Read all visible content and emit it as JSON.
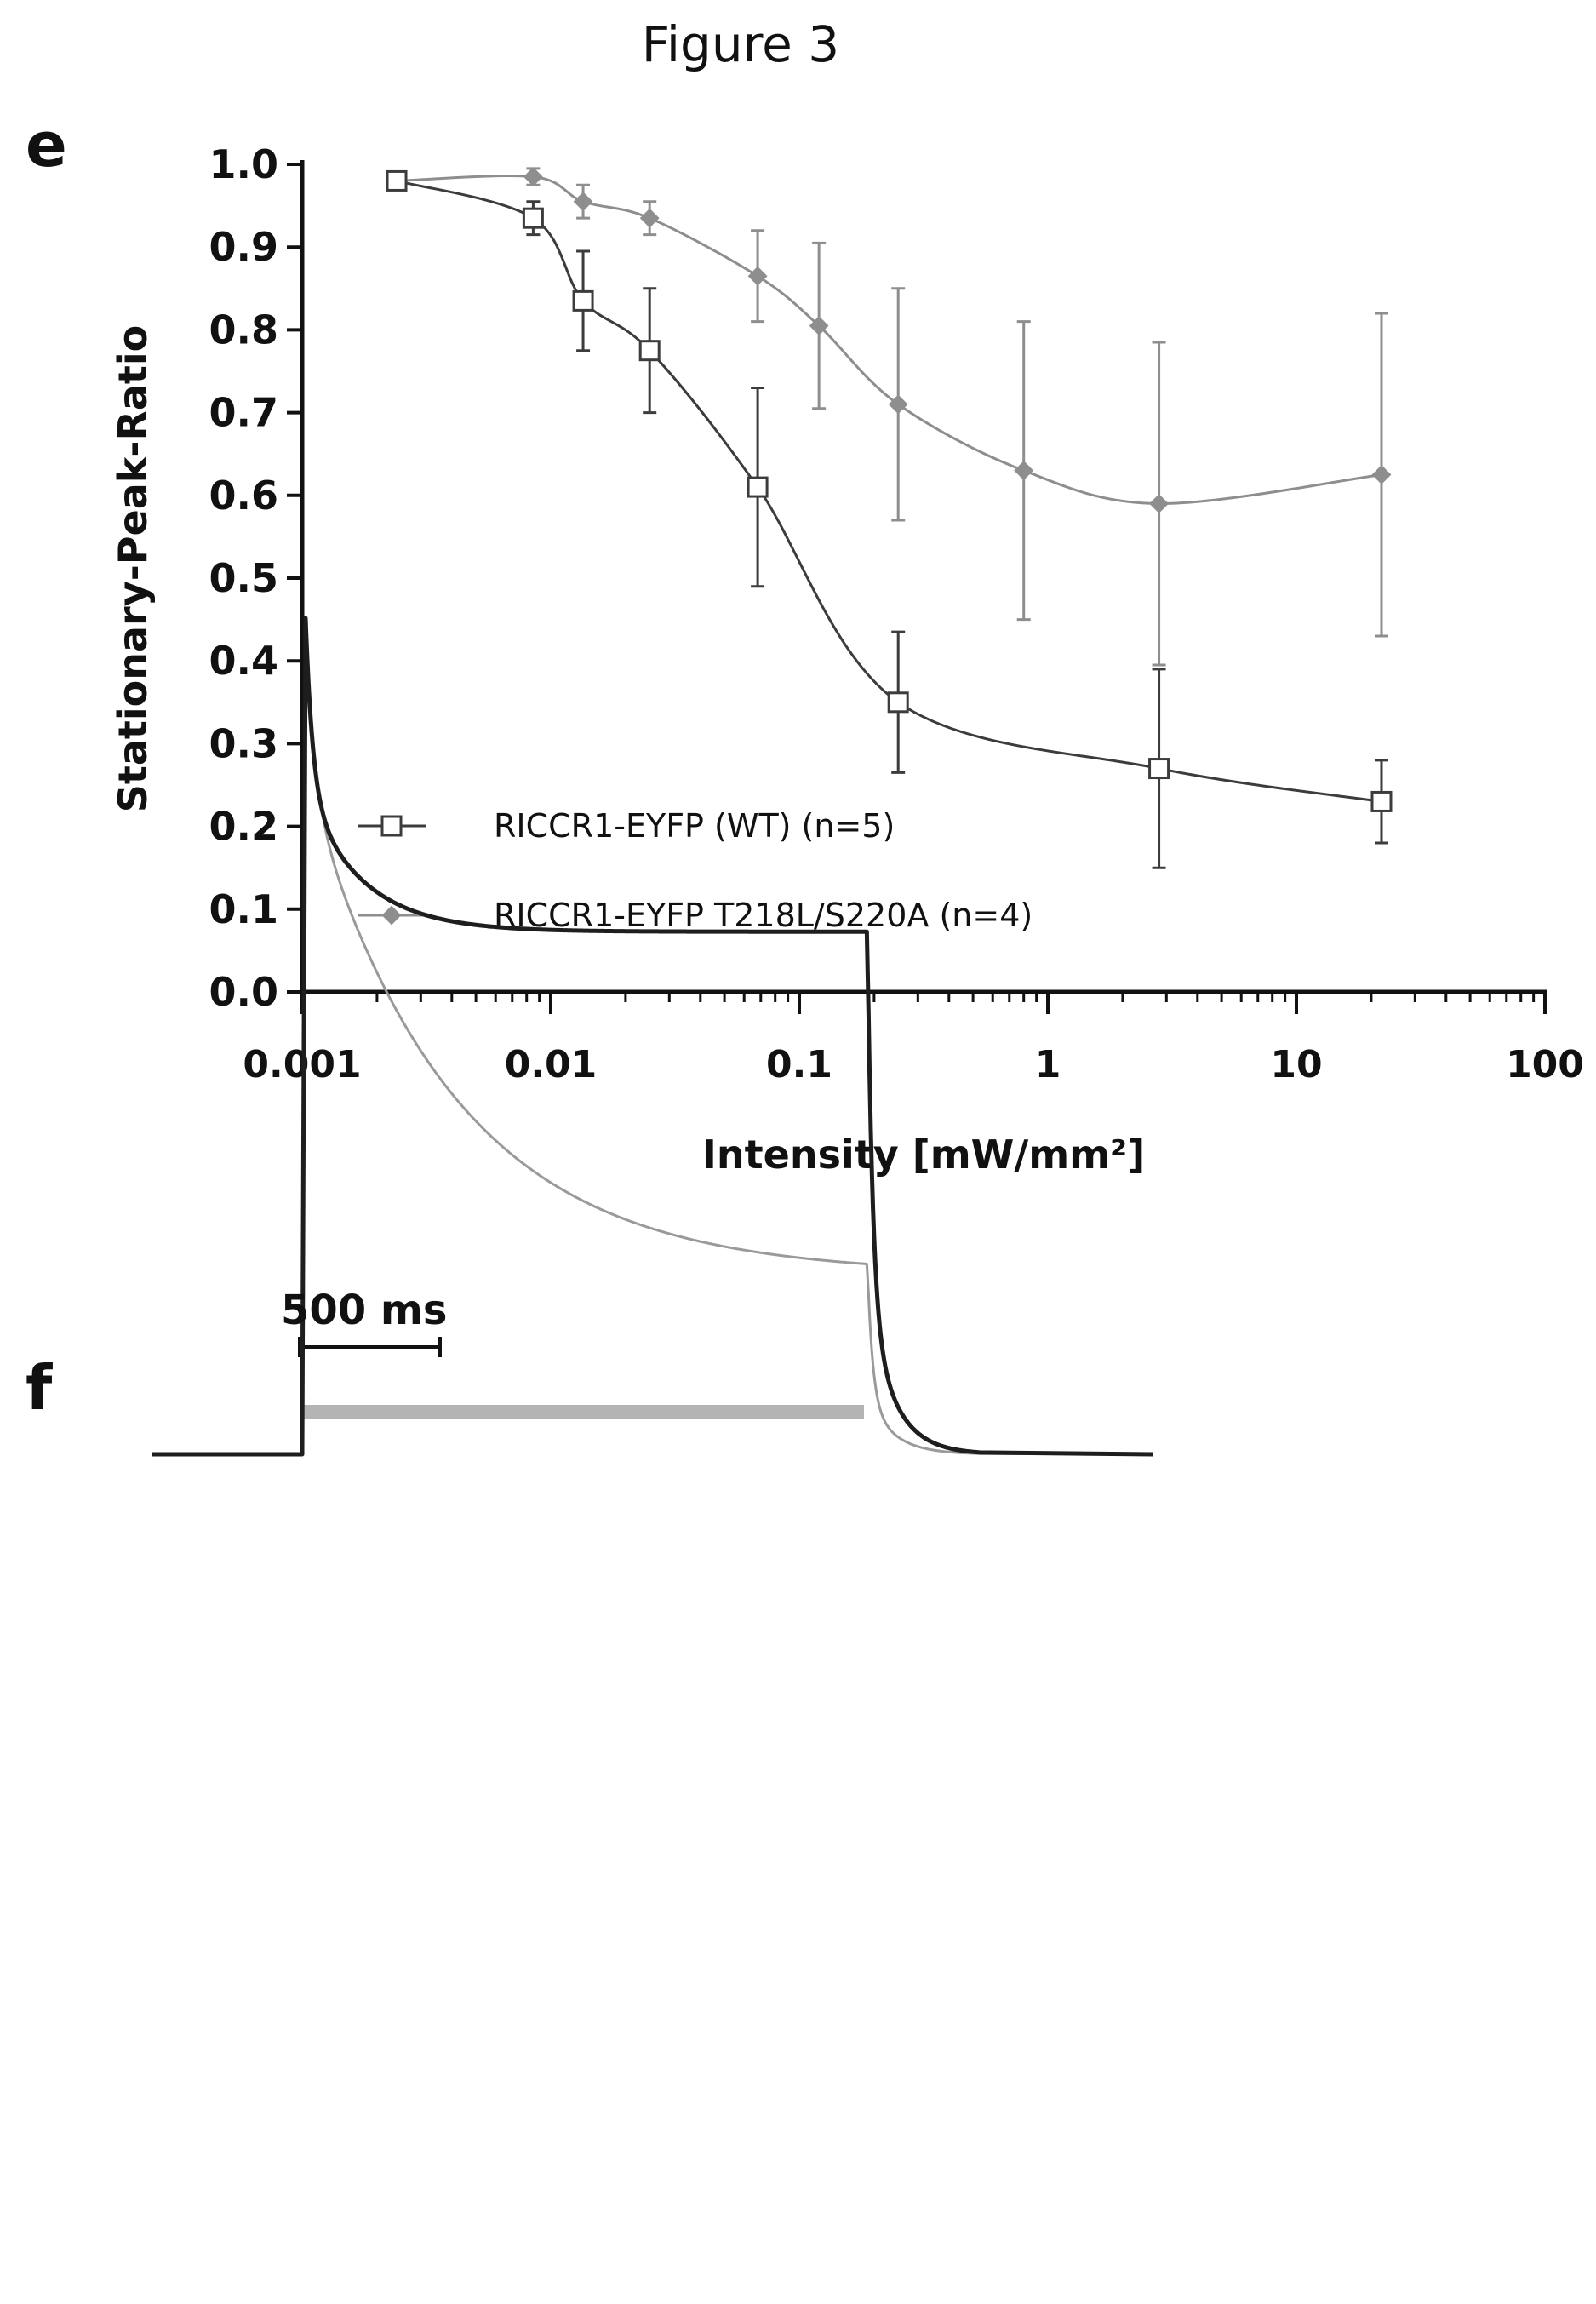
{
  "figure_title": "Figure 3",
  "panels": {
    "e": "e",
    "f": "f"
  },
  "chart_data": [
    {
      "panel": "e",
      "type": "line",
      "xlabel": "Intensity [mW/mm²]",
      "ylabel": "Stationary-Peak-Ratio",
      "xscale": "log",
      "xlim": [
        0.001,
        100
      ],
      "ylim": [
        0.0,
        1.0
      ],
      "xticks": [
        "0.001",
        "0.01",
        "0.1",
        "1",
        "10",
        "100"
      ],
      "yticks": [
        "0.0",
        "0.1",
        "0.2",
        "0.3",
        "0.4",
        "0.5",
        "0.6",
        "0.7",
        "0.8",
        "0.9",
        "1.0"
      ],
      "legend_position": "bottom-left",
      "series": [
        {
          "name": "RICCR1-EYFP (WT) (n=5)",
          "marker": "square",
          "color": "#3c3c3c",
          "points": [
            {
              "x": 0.0024,
              "y": 0.98,
              "err": 0.01
            },
            {
              "x": 0.0085,
              "y": 0.935,
              "err": 0.02
            },
            {
              "x": 0.0135,
              "y": 0.835,
              "err": 0.06
            },
            {
              "x": 0.025,
              "y": 0.775,
              "err": 0.075
            },
            {
              "x": 0.068,
              "y": 0.61,
              "err": 0.12
            },
            {
              "x": 0.25,
              "y": 0.35,
              "err": 0.085
            },
            {
              "x": 2.8,
              "y": 0.27,
              "err": 0.12
            },
            {
              "x": 22,
              "y": 0.23,
              "err": 0.05
            }
          ]
        },
        {
          "name": "RICCR1-EYFP T218L/S220A (n=4)",
          "marker": "diamond",
          "color": "#8e8e8e",
          "points": [
            {
              "x": 0.0024,
              "y": 0.98,
              "err": 0.01
            },
            {
              "x": 0.0085,
              "y": 0.985,
              "err": 0.01
            },
            {
              "x": 0.0135,
              "y": 0.955,
              "err": 0.02
            },
            {
              "x": 0.025,
              "y": 0.935,
              "err": 0.02
            },
            {
              "x": 0.068,
              "y": 0.865,
              "err": 0.055
            },
            {
              "x": 0.12,
              "y": 0.805,
              "err": 0.1
            },
            {
              "x": 0.25,
              "y": 0.71,
              "err": 0.14
            },
            {
              "x": 0.8,
              "y": 0.63,
              "err": 0.18
            },
            {
              "x": 2.8,
              "y": 0.59,
              "err": 0.195
            },
            {
              "x": 22,
              "y": 0.625,
              "err": 0.195
            }
          ]
        }
      ]
    },
    {
      "panel": "f",
      "type": "line",
      "scale_bar_label": "500 ms",
      "scale_bar_ms": 500,
      "light_pulse_ms": 2000,
      "series": [
        {
          "color": "#1e1e1e",
          "description_hidden": true,
          "baseline": 0,
          "peak": -1,
          "stationary": -0.625,
          "tau_ms": 200,
          "fast_fraction": 0.55,
          "tau_fast_ms": 25
        },
        {
          "color": "#9a9a9a",
          "description_hidden": true,
          "baseline": 0,
          "peak": -1,
          "stationary": -0.215,
          "tau_ms": 520,
          "fast_fraction": 0.25,
          "tau_fast_ms": 30
        }
      ]
    }
  ]
}
